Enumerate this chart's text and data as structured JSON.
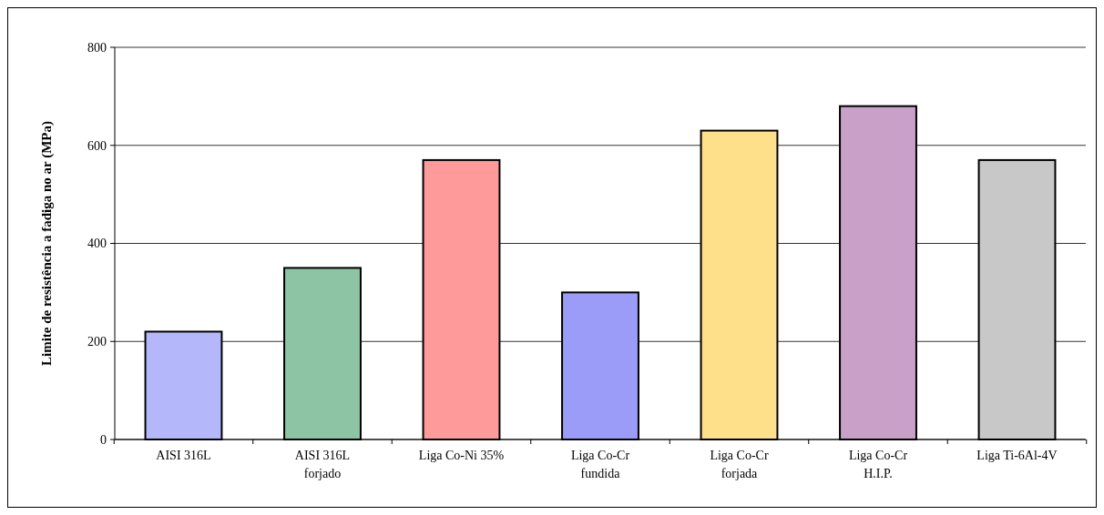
{
  "chart_data": {
    "type": "bar",
    "ylabel": "Limite de resistência a fadiga no ar (MPa)",
    "categories": [
      "AISI 316L",
      "AISI 316L\nforjado",
      "Liga Co-Ni 35%",
      "Liga Co-Cr\nfundida",
      "Liga Co-Cr\nforjada",
      "Liga Co-Cr\nH.I.P.",
      "Liga Ti-6Al-4V"
    ],
    "values": [
      220,
      350,
      570,
      300,
      630,
      680,
      570
    ],
    "colors": [
      "#b4b8fa",
      "#8cc4a4",
      "#ff9a9a",
      "#9a9cf8",
      "#ffe08a",
      "#c8a0c8",
      "#c8c8c8"
    ],
    "ylim": [
      0,
      800
    ],
    "yticks": [
      0,
      200,
      400,
      600,
      800
    ],
    "grid": "y"
  }
}
